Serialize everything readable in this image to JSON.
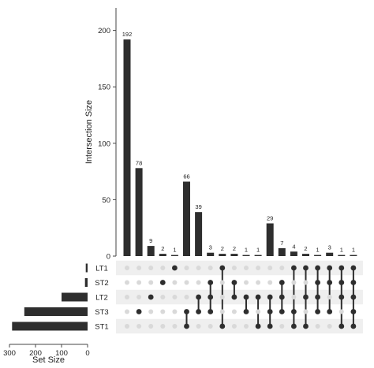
{
  "chart_data": {
    "type": "bar",
    "title": "",
    "subtitle": "",
    "intersection_axis": {
      "label": "Intersection Size",
      "ylim": [
        0,
        220
      ],
      "ticks": [
        0,
        50,
        100,
        150,
        200
      ]
    },
    "set_size_axis": {
      "label": "Set Size",
      "xlim": [
        300,
        0
      ],
      "ticks": [
        300,
        200,
        100,
        0
      ]
    },
    "sets": [
      "LT1",
      "ST2",
      "LT2",
      "ST3",
      "ST1"
    ],
    "set_sizes": [
      7,
      10,
      100,
      243,
      290
    ],
    "intersections": [
      {
        "value": 192,
        "members": []
      },
      {
        "value": 78,
        "members": [
          "ST3"
        ]
      },
      {
        "value": 9,
        "members": [
          "LT2"
        ]
      },
      {
        "value": 2,
        "members": [
          "ST2"
        ]
      },
      {
        "value": 1,
        "members": [
          "LT1"
        ]
      },
      {
        "value": 66,
        "members": [
          "ST3",
          "ST1"
        ]
      },
      {
        "value": 39,
        "members": [
          "LT2",
          "ST3"
        ]
      },
      {
        "value": 3,
        "members": [
          "ST2",
          "LT2",
          "ST3"
        ]
      },
      {
        "value": 2,
        "members": [
          "LT1",
          "ST1"
        ]
      },
      {
        "value": 2,
        "members": [
          "ST2",
          "LT2"
        ]
      },
      {
        "value": 1,
        "members": [
          "LT2",
          "ST3"
        ]
      },
      {
        "value": 1,
        "members": [
          "LT2",
          "ST1"
        ]
      },
      {
        "value": 29,
        "members": [
          "LT2",
          "ST3",
          "ST1"
        ]
      },
      {
        "value": 7,
        "members": [
          "ST2",
          "LT2",
          "ST3"
        ]
      },
      {
        "value": 4,
        "members": [
          "LT1",
          "ST3",
          "ST1"
        ]
      },
      {
        "value": 2,
        "members": [
          "LT1",
          "LT2",
          "ST1"
        ]
      },
      {
        "value": 1,
        "members": [
          "LT1",
          "ST2",
          "LT2",
          "ST3"
        ]
      },
      {
        "value": 3,
        "members": [
          "LT1",
          "ST2",
          "ST3"
        ]
      },
      {
        "value": 1,
        "members": [
          "LT1",
          "ST2",
          "LT2",
          "ST1"
        ]
      },
      {
        "value": 1,
        "members": [
          "LT1",
          "ST2",
          "LT2",
          "ST3",
          "ST1"
        ]
      }
    ],
    "colors": {
      "bar": "#2e2e2e",
      "dot_active": "#2e2e2e",
      "dot_inactive": "#d9d9d9",
      "stripe": "#efefef",
      "axis": "#444444"
    },
    "grid": false
  }
}
